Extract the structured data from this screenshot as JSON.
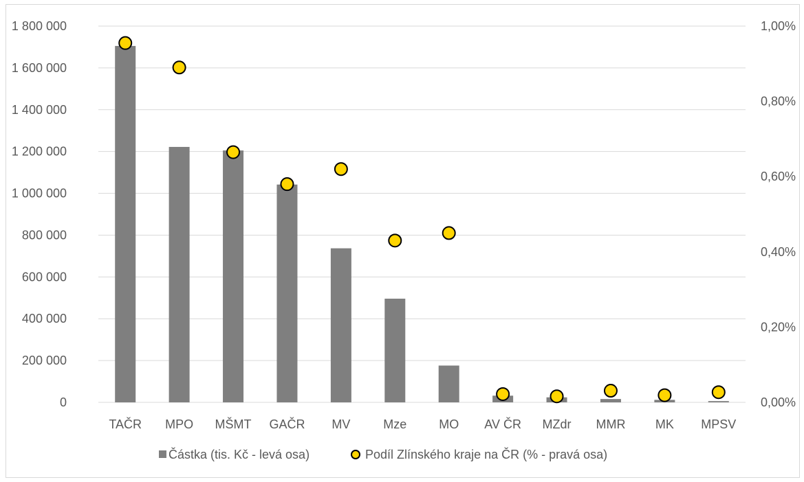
{
  "chart_data": {
    "type": "bar",
    "categories": [
      "TAČR",
      "MPO",
      "MŠMT",
      "GAČR",
      "MV",
      "Mze",
      "MO",
      "AV ČR",
      "MZdr",
      "MMR",
      "MK",
      "MPSV"
    ],
    "series": [
      {
        "name": "Částka (tis. Kč - levá osa)",
        "type": "bar",
        "axis": "left",
        "color": "#7f7f7f",
        "values": [
          1705000,
          1222000,
          1205000,
          1042000,
          737000,
          496000,
          176000,
          32000,
          24000,
          16000,
          12000,
          6000
        ]
      },
      {
        "name": "Podíl Zlínského kraje na ČR (% - pravá osa)",
        "type": "scatter",
        "axis": "right",
        "color": "#ffd500",
        "values": [
          0.955,
          0.89,
          0.665,
          0.58,
          0.62,
          0.43,
          0.45,
          0.022,
          0.016,
          0.031,
          0.019,
          0.027
        ]
      }
    ],
    "y_left": {
      "ylim": [
        0,
        1800000
      ],
      "ticks": [
        0,
        200000,
        400000,
        600000,
        800000,
        1000000,
        1200000,
        1400000,
        1600000,
        1800000
      ],
      "tick_labels": [
        "0",
        "200 000",
        "400 000",
        "600 000",
        "800 000",
        "1 000 000",
        "1 200 000",
        "1 400 000",
        "1 600 000",
        "1 800 000"
      ]
    },
    "y_right": {
      "ylim": [
        0,
        1.0
      ],
      "ticks": [
        0,
        0.2,
        0.4,
        0.6,
        0.8,
        1.0
      ],
      "tick_labels": [
        "0,00%",
        "0,20%",
        "0,40%",
        "0,60%",
        "0,80%",
        "1,00%"
      ]
    },
    "grid": true,
    "legend_position": "bottom",
    "colors": {
      "gridline": "#d9d9d9",
      "text": "#595959",
      "marker_edge": "#000000"
    }
  }
}
